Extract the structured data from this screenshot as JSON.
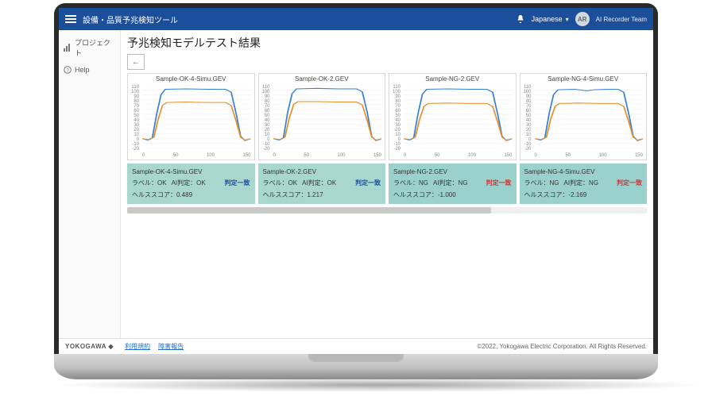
{
  "colors": {
    "topbar_bg": "#1b4f9c",
    "card_ok_bg": "#a8d7d0",
    "card_ng_bg": "#9bd1cc",
    "link": "#1b6fd0",
    "judge_match": "#1b4f9c",
    "judge_nomatch": "#c23a3a"
  },
  "topbar": {
    "title": "設備・品質予兆検知ツール",
    "language": "Japanese",
    "avatar_initials": "AR",
    "team": "AI Recorder Team"
  },
  "sidebar": {
    "items": [
      {
        "icon": "bars-icon",
        "label": "プロジェクト"
      },
      {
        "icon": "help-icon",
        "label": "Help"
      }
    ]
  },
  "page": {
    "title": "予兆検知モデルテスト結果",
    "back_label": "←"
  },
  "chart_common": {
    "type": "line",
    "ylim": [
      -20,
      110
    ],
    "yticks": [
      110,
      100,
      90,
      80,
      70,
      60,
      50,
      40,
      30,
      20,
      10,
      0,
      -10,
      -20
    ],
    "xlim": [
      0,
      150
    ],
    "xticks": [
      0,
      50,
      100,
      150
    ],
    "grid_color": "#e8e8e8",
    "axis_color": "#cfcfcf",
    "background_color": "#ffffff",
    "line_width": 1.3,
    "fontsize_ticks": 6
  },
  "samples": [
    {
      "name": "Sample-OK-4-Simu.GEV",
      "series": [
        {
          "color": "#3a82d6",
          "points": [
            [
              0,
              0
            ],
            [
              8,
              -3
            ],
            [
              14,
              2
            ],
            [
              20,
              50
            ],
            [
              26,
              90
            ],
            [
              32,
              101
            ],
            [
              60,
              102
            ],
            [
              90,
              101
            ],
            [
              115,
              101
            ],
            [
              123,
              95
            ],
            [
              130,
              50
            ],
            [
              136,
              5
            ],
            [
              142,
              -4
            ],
            [
              150,
              0
            ]
          ]
        },
        {
          "color": "#e7902a",
          "points": [
            [
              0,
              0
            ],
            [
              10,
              -2
            ],
            [
              16,
              3
            ],
            [
              22,
              40
            ],
            [
              28,
              68
            ],
            [
              34,
              74
            ],
            [
              60,
              75
            ],
            [
              90,
              74
            ],
            [
              115,
              74
            ],
            [
              123,
              68
            ],
            [
              130,
              35
            ],
            [
              136,
              3
            ],
            [
              142,
              -3
            ],
            [
              150,
              0
            ]
          ]
        }
      ],
      "card": {
        "status": "ok",
        "label_prefix": "ラベル：",
        "label_value": "OK",
        "ai_prefix": "AI判定：",
        "ai_value": "OK",
        "judge": "判定一致",
        "judge_class": "match",
        "score_prefix": "ヘルススコア：",
        "score": "0.489"
      }
    },
    {
      "name": "Sample-OK-2.GEV",
      "series": [
        {
          "color": "#3a82d6",
          "points": [
            [
              0,
              0
            ],
            [
              8,
              -3
            ],
            [
              14,
              2
            ],
            [
              20,
              55
            ],
            [
              26,
              92
            ],
            [
              32,
              102
            ],
            [
              60,
              103
            ],
            [
              90,
              102
            ],
            [
              115,
              102
            ],
            [
              123,
              96
            ],
            [
              130,
              52
            ],
            [
              136,
              4
            ],
            [
              142,
              -4
            ],
            [
              150,
              0
            ]
          ]
        },
        {
          "color": "#e7902a",
          "points": [
            [
              0,
              0
            ],
            [
              10,
              -2
            ],
            [
              16,
              3
            ],
            [
              22,
              42
            ],
            [
              28,
              70
            ],
            [
              34,
              76
            ],
            [
              60,
              76
            ],
            [
              90,
              75
            ],
            [
              115,
              75
            ],
            [
              123,
              69
            ],
            [
              130,
              36
            ],
            [
              136,
              3
            ],
            [
              142,
              -3
            ],
            [
              150,
              0
            ]
          ]
        }
      ],
      "card": {
        "status": "ok",
        "label_prefix": "ラベル：",
        "label_value": "OK",
        "ai_prefix": "AI判定：",
        "ai_value": "OK",
        "judge": "判定一致",
        "judge_class": "match",
        "score_prefix": "ヘルススコア：",
        "score": "1.217"
      }
    },
    {
      "name": "Sample-NG-2.GEV",
      "series": [
        {
          "color": "#3a82d6",
          "points": [
            [
              0,
              0
            ],
            [
              8,
              -3
            ],
            [
              14,
              2
            ],
            [
              20,
              52
            ],
            [
              26,
              91
            ],
            [
              32,
              101
            ],
            [
              60,
              102
            ],
            [
              90,
              101
            ],
            [
              115,
              101
            ],
            [
              123,
              95
            ],
            [
              130,
              50
            ],
            [
              136,
              5
            ],
            [
              142,
              -4
            ],
            [
              150,
              0
            ]
          ]
        },
        {
          "color": "#e7902a",
          "points": [
            [
              0,
              0
            ],
            [
              10,
              -2
            ],
            [
              16,
              3
            ],
            [
              22,
              40
            ],
            [
              28,
              66
            ],
            [
              34,
              72
            ],
            [
              60,
              73
            ],
            [
              90,
              72
            ],
            [
              115,
              72
            ],
            [
              123,
              66
            ],
            [
              130,
              34
            ],
            [
              136,
              3
            ],
            [
              142,
              -3
            ],
            [
              150,
              0
            ]
          ]
        }
      ],
      "card": {
        "status": "ng",
        "label_prefix": "ラベル：",
        "label_value": "NG",
        "ai_prefix": "AI判定：",
        "ai_value": "NG",
        "judge": "判定一致",
        "judge_class": "nomatch",
        "score_prefix": "ヘルススコア：",
        "score": "-1.000"
      }
    },
    {
      "name": "Sample-NG-4-Simu.GEV",
      "series": [
        {
          "color": "#3a82d6",
          "points": [
            [
              0,
              0
            ],
            [
              8,
              -3
            ],
            [
              14,
              2
            ],
            [
              20,
              52
            ],
            [
              26,
              90
            ],
            [
              32,
              100
            ],
            [
              55,
              101
            ],
            [
              72,
              98
            ],
            [
              82,
              100
            ],
            [
              100,
              101
            ],
            [
              115,
              101
            ],
            [
              123,
              95
            ],
            [
              130,
              50
            ],
            [
              136,
              5
            ],
            [
              142,
              -4
            ],
            [
              150,
              0
            ]
          ]
        },
        {
          "color": "#e7902a",
          "points": [
            [
              0,
              0
            ],
            [
              10,
              -2
            ],
            [
              16,
              3
            ],
            [
              22,
              40
            ],
            [
              28,
              66
            ],
            [
              34,
              72
            ],
            [
              60,
              73
            ],
            [
              90,
              72
            ],
            [
              115,
              72
            ],
            [
              123,
              66
            ],
            [
              130,
              34
            ],
            [
              136,
              3
            ],
            [
              142,
              -3
            ],
            [
              150,
              0
            ]
          ]
        }
      ],
      "card": {
        "status": "ng",
        "label_prefix": "ラベル：",
        "label_value": "NG",
        "ai_prefix": "AI判定：",
        "ai_value": "NG",
        "judge": "判定一致",
        "judge_class": "nomatch",
        "score_prefix": "ヘルススコア：",
        "score": "-2.169"
      }
    }
  ],
  "footer": {
    "brand": "YOKOGAWA ◆",
    "links": [
      "利用規約",
      "障害報告"
    ],
    "copyright": "©2022, Yokogawa Electric Corporation. All Rights Reserved."
  }
}
